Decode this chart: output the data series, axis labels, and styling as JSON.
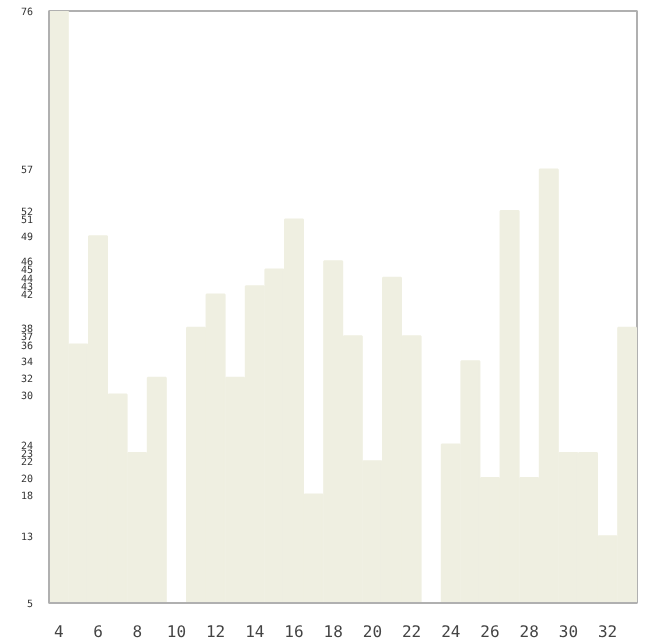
{
  "chart_data": {
    "type": "bar",
    "x": [
      4,
      5,
      6,
      7,
      8,
      9,
      10,
      11,
      12,
      13,
      14,
      15,
      16,
      17,
      18,
      19,
      20,
      21,
      22,
      23,
      24,
      25,
      26,
      27,
      28,
      29,
      30,
      31,
      32,
      33
    ],
    "values": [
      76,
      36,
      49,
      30,
      23,
      32,
      5,
      38,
      42,
      32,
      43,
      45,
      51,
      18,
      46,
      37,
      22,
      44,
      37,
      5,
      24,
      34,
      20,
      52,
      20,
      57,
      23,
      23,
      13,
      38
    ],
    "color": "#efefe1",
    "xlim": [
      3.5,
      33.5
    ],
    "xticks": [
      4,
      6,
      8,
      10,
      12,
      14,
      16,
      18,
      20,
      22,
      24,
      26,
      28,
      30,
      32
    ],
    "ylim": [
      5,
      76
    ],
    "yticks": [
      76,
      57,
      52,
      51,
      49,
      46,
      45,
      44,
      43,
      42,
      38,
      37,
      36,
      34,
      32,
      30,
      24,
      23,
      22,
      20,
      18,
      13,
      5
    ],
    "grid": false
  }
}
